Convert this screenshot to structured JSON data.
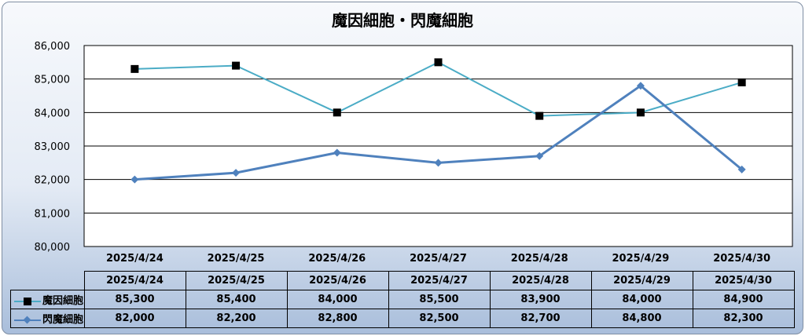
{
  "chart_data": {
    "type": "line",
    "title": "魔因細胞・閃魔細胞",
    "categories": [
      "2025/4/24",
      "2025/4/25",
      "2025/4/26",
      "2025/4/27",
      "2025/4/28",
      "2025/4/29",
      "2025/4/30"
    ],
    "series": [
      {
        "name": "魔因細胞",
        "values": [
          85300,
          85400,
          84000,
          85500,
          83900,
          84000,
          84900
        ],
        "labels": [
          "85,300",
          "85,400",
          "84,000",
          "85,500",
          "83,900",
          "84,000",
          "84,900"
        ],
        "color": "#4bacc6",
        "marker": "square",
        "marker_color": "#000000"
      },
      {
        "name": "閃魔細胞",
        "values": [
          82000,
          82200,
          82800,
          82500,
          82700,
          84800,
          82300
        ],
        "labels": [
          "82,000",
          "82,200",
          "82,800",
          "82,500",
          "82,700",
          "84,800",
          "82,300"
        ],
        "color": "#4f81bd",
        "marker": "diamond",
        "marker_color": "#4f81bd"
      }
    ],
    "ylim": [
      80000,
      86000
    ],
    "yticks": [
      80000,
      81000,
      82000,
      83000,
      84000,
      85000,
      86000
    ],
    "ytick_labels": [
      "80,000",
      "81,000",
      "82,000",
      "83,000",
      "84,000",
      "85,000",
      "86,000"
    ],
    "xlabel": "",
    "ylabel": "",
    "grid": true,
    "legend": "data-table",
    "data_table": true
  }
}
